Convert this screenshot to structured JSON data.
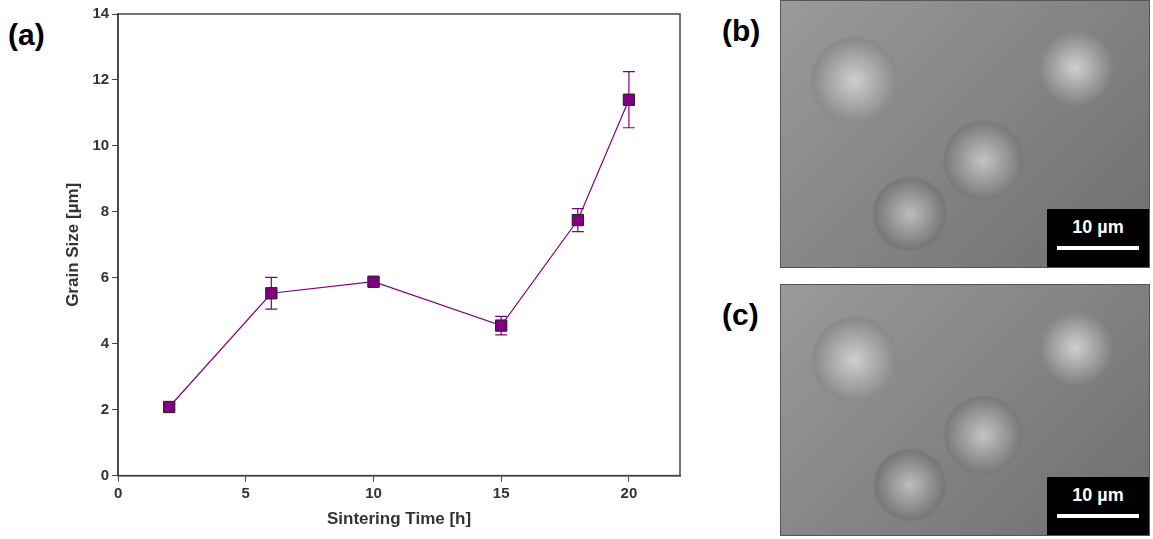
{
  "panel_label": "(a)",
  "chart_data": {
    "type": "line",
    "x_label": "Sintering Time [h]",
    "y_label": "Grain Size [µm]",
    "x": [
      2,
      6,
      10,
      15,
      18,
      20
    ],
    "series": [
      {
        "name": "Grain Size",
        "color": "#800080",
        "marker": "square",
        "line_style": "solid",
        "values": [
          2.08,
          5.53,
          5.88,
          4.55,
          7.75,
          11.4
        ],
        "errors": [
          0.08,
          0.48,
          0.1,
          0.28,
          0.35,
          0.85
        ]
      }
    ],
    "xlim": [
      0,
      22
    ],
    "xticks": [
      0,
      5,
      10,
      15,
      20
    ],
    "ylim": [
      0,
      14
    ],
    "yticks": [
      0,
      2,
      4,
      6,
      8,
      10,
      12,
      14
    ],
    "grid": false
  },
  "images": [
    {
      "label": "(b)",
      "scale_bar": "10 µm"
    },
    {
      "label": "(c)",
      "scale_bar": "10 µm"
    }
  ]
}
